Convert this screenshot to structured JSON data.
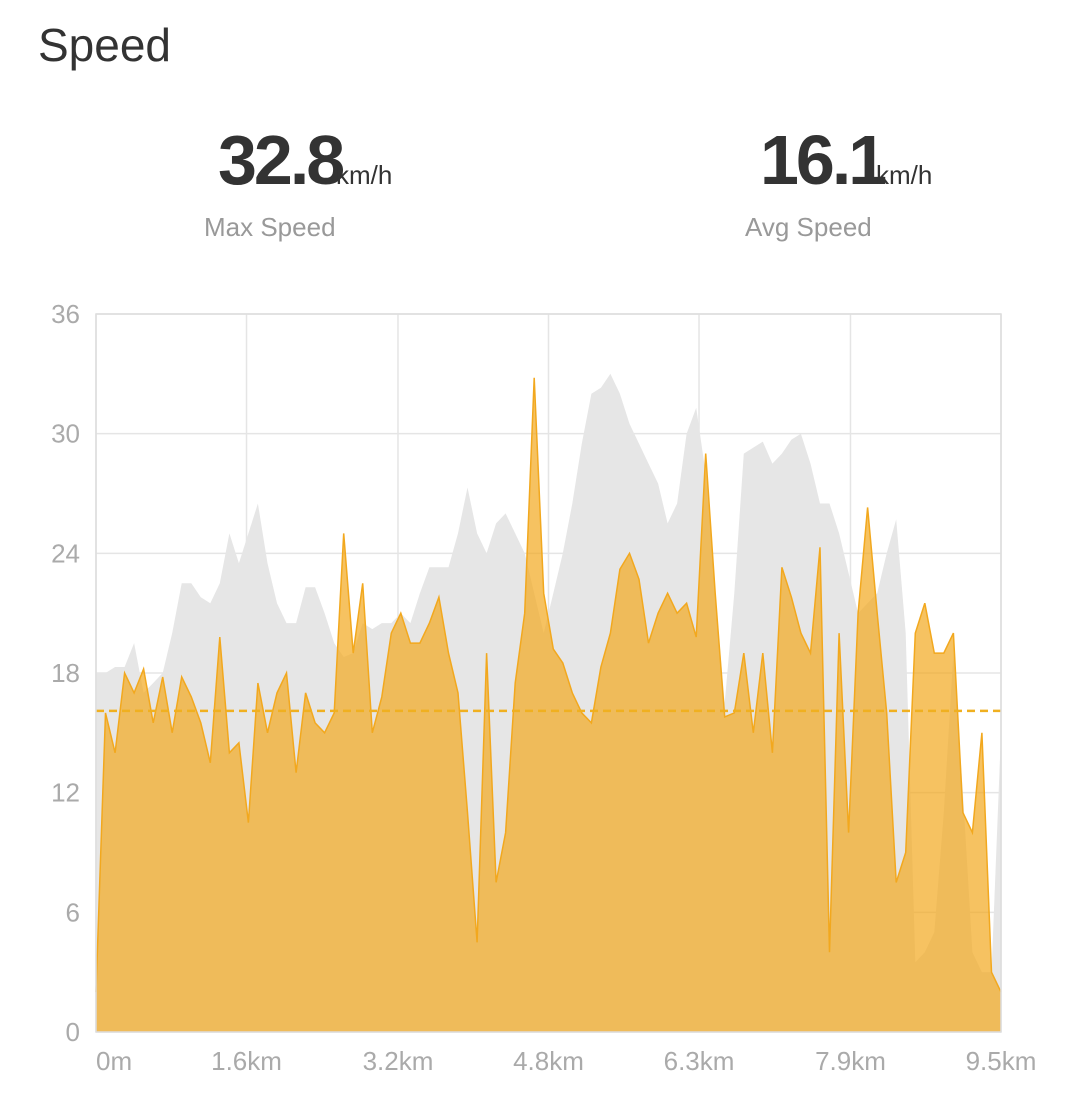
{
  "header": {
    "title": "Speed"
  },
  "stats": [
    {
      "value": 32.8,
      "unit": "km/h",
      "label": "Max Speed"
    },
    {
      "value": 16.1,
      "unit": "km/h",
      "label": "Avg Speed"
    }
  ],
  "chart_data": {
    "type": "area",
    "x": [
      0.0,
      0.1,
      0.2,
      0.3,
      0.4,
      0.5,
      0.6,
      0.7,
      0.8,
      0.9,
      1.0,
      1.1,
      1.2,
      1.3,
      1.4,
      1.5,
      1.6,
      1.7,
      1.8,
      1.9,
      2.0,
      2.1,
      2.2,
      2.3,
      2.4,
      2.5,
      2.6,
      2.7,
      2.8,
      2.9,
      3.0,
      3.1,
      3.2,
      3.3,
      3.4,
      3.5,
      3.6,
      3.7,
      3.8,
      3.9,
      4.0,
      4.1,
      4.2,
      4.3,
      4.4,
      4.5,
      4.6,
      4.7,
      4.8,
      4.9,
      5.0,
      5.1,
      5.2,
      5.3,
      5.4,
      5.5,
      5.6,
      5.7,
      5.8,
      5.9,
      6.0,
      6.1,
      6.2,
      6.3,
      6.4,
      6.5,
      6.6,
      6.7,
      6.8,
      6.9,
      7.0,
      7.1,
      7.2,
      7.3,
      7.4,
      7.5,
      7.6,
      7.7,
      7.8,
      7.9,
      8.0,
      8.1,
      8.2,
      8.3,
      8.4,
      8.5,
      8.6,
      8.7,
      8.8,
      8.9,
      9.0,
      9.1,
      9.2,
      9.3,
      9.4,
      9.5
    ],
    "series": [
      {
        "color": "#e6e6e6",
        "values": [
          18,
          18,
          18.3,
          18.3,
          19.5,
          17,
          17.5,
          18,
          20,
          22.5,
          22.5,
          21.8,
          21.5,
          22.5,
          25,
          23.5,
          25,
          26.5,
          23.5,
          21.5,
          20.5,
          20.5,
          22.3,
          22.3,
          21,
          19.5,
          18.8,
          19,
          20.5,
          20.2,
          20.5,
          20.5,
          21,
          20.5,
          22,
          23.3,
          23.3,
          23.3,
          25,
          27.3,
          25,
          24,
          25.5,
          26,
          25,
          24,
          22,
          20,
          22,
          24,
          26.5,
          29.5,
          32,
          32.3,
          33,
          32,
          30.5,
          29.5,
          28.5,
          27.5,
          25.5,
          26.5,
          30,
          31.3,
          28,
          22,
          16.5,
          22,
          29,
          29.3,
          29.6,
          28.5,
          29,
          29.7,
          30,
          28.5,
          26.5,
          26.5,
          25,
          23,
          21,
          21.5,
          22,
          24,
          25.7,
          20,
          3.5,
          4,
          5,
          11,
          19,
          12,
          4,
          3,
          3,
          15
        ]
      },
      {
        "color": "#f2a81e",
        "values": [
          2,
          16,
          14,
          18,
          17,
          18.2,
          15.5,
          17.8,
          15,
          17.8,
          16.8,
          15.5,
          13.5,
          19.8,
          14,
          14.5,
          10.5,
          17.5,
          15,
          17,
          18,
          13,
          17,
          15.5,
          15,
          16,
          25,
          19,
          22.5,
          15,
          16.8,
          20,
          21,
          19.5,
          19.5,
          20.5,
          21.8,
          19,
          17,
          11,
          4.5,
          19,
          7.5,
          10,
          17.5,
          21,
          32.8,
          22,
          19.2,
          18.5,
          17,
          16,
          15.5,
          18.3,
          20,
          23.2,
          24,
          22.7,
          19.5,
          21,
          22,
          21,
          21.5,
          19.8,
          29,
          22,
          15.8,
          16,
          19,
          15,
          19,
          14,
          23.3,
          21.8,
          20,
          19,
          24.3,
          4,
          20,
          10,
          21,
          26.3,
          21,
          16,
          7.5,
          9,
          20,
          21.5,
          19,
          19,
          20,
          11,
          10,
          15,
          3,
          2
        ]
      }
    ],
    "xlim": [
      0,
      9.5
    ],
    "xticks": [
      {
        "value": 0,
        "label": "0m"
      },
      {
        "value": 1.58,
        "label": "1.6km"
      },
      {
        "value": 3.17,
        "label": "3.2km"
      },
      {
        "value": 4.75,
        "label": "4.8km"
      },
      {
        "value": 6.33,
        "label": "6.3km"
      },
      {
        "value": 7.92,
        "label": "7.9km"
      },
      {
        "value": 9.5,
        "label": "9.5km"
      }
    ],
    "ylim": [
      0,
      36
    ],
    "yticks": [
      0,
      6,
      12,
      18,
      24,
      30,
      36
    ],
    "grid": true
  }
}
